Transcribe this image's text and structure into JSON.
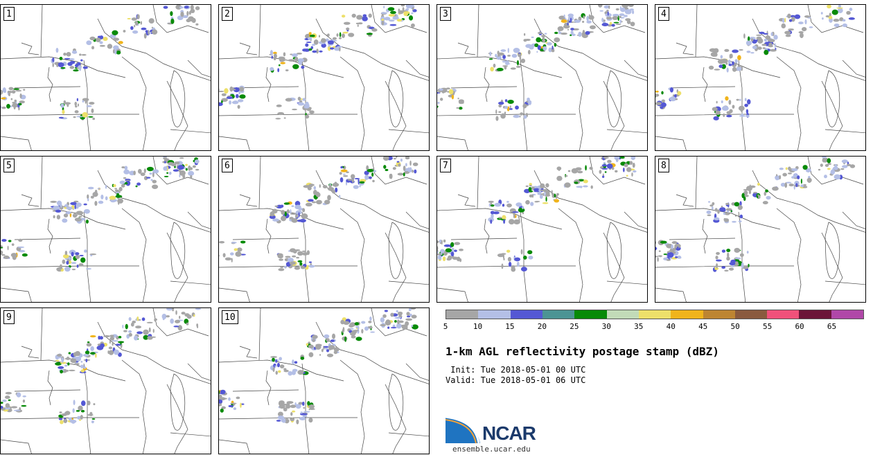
{
  "panels": [
    "1",
    "2",
    "3",
    "4",
    "5",
    "6",
    "7",
    "8",
    "9",
    "10"
  ],
  "colorbar": {
    "ticks": [
      "5",
      "10",
      "15",
      "20",
      "25",
      "30",
      "35",
      "40",
      "45",
      "50",
      "55",
      "60",
      "65"
    ],
    "colors": [
      "#a6a6a6",
      "#b4bfe6",
      "#5458d4",
      "#4c9494",
      "#078a07",
      "#c2dbb8",
      "#ede06a",
      "#f0b41c",
      "#bd8532",
      "#8a5a3e",
      "#f0517a",
      "#6b1538",
      "#b048a8"
    ]
  },
  "title": "1-km AGL reflectivity postage stamp (dBZ)",
  "init": " Init: Tue 2018-05-01 00 UTC",
  "valid": "Valid: Tue 2018-05-01 06 UTC",
  "logo": {
    "name": "NCAR",
    "url": "ensemble.ucar.edu"
  }
}
